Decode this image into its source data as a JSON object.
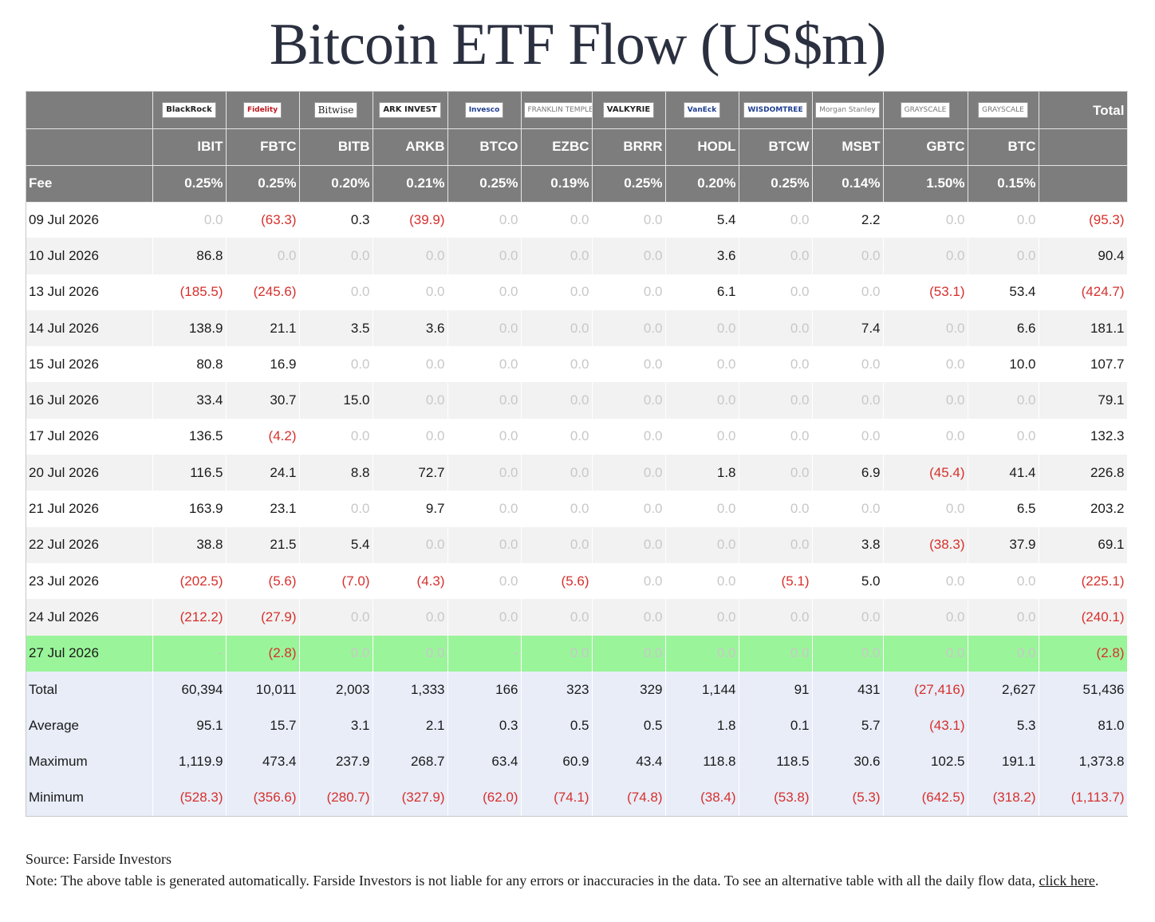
{
  "title": "Bitcoin ETF Flow (US$m)",
  "chart_data": {
    "type": "table",
    "title": "Bitcoin ETF Flow (US$m)",
    "logos": [
      {
        "text": "BlackRock",
        "style": "bold"
      },
      {
        "text": "Fidelity",
        "style": "red"
      },
      {
        "text": "Bitwise",
        "style": "serif"
      },
      {
        "text": "ARK INVEST",
        "style": "bold"
      },
      {
        "text": "Invesco",
        "style": "blue"
      },
      {
        "text": "FRANKLIN TEMPLETON",
        "style": "grey"
      },
      {
        "text": "VALKYRIE",
        "style": "bold"
      },
      {
        "text": "VanEck",
        "style": "blue"
      },
      {
        "text": "WISDOMTREE",
        "style": "blue"
      },
      {
        "text": "Morgan Stanley",
        "style": "grey"
      },
      {
        "text": "GRAYSCALE",
        "style": "grey"
      },
      {
        "text": "GRAYSCALE",
        "style": "grey"
      }
    ],
    "total_label": "Total",
    "fee_label": "Fee",
    "tickers": [
      "IBIT",
      "FBTC",
      "BITB",
      "ARKB",
      "BTCO",
      "EZBC",
      "BRRR",
      "HODL",
      "BTCW",
      "MSBT",
      "GBTC",
      "BTC"
    ],
    "fees": [
      "0.25%",
      "0.25%",
      "0.20%",
      "0.21%",
      "0.25%",
      "0.19%",
      "0.25%",
      "0.20%",
      "0.25%",
      "0.14%",
      "1.50%",
      "0.15%"
    ],
    "rows": [
      {
        "date": "09 Jul 2026",
        "values": [
          "0.0",
          "(63.3)",
          "0.3",
          "(39.9)",
          "0.0",
          "0.0",
          "0.0",
          "5.4",
          "0.0",
          "2.2",
          "0.0",
          "0.0"
        ],
        "total": "(95.3)"
      },
      {
        "date": "10 Jul 2026",
        "values": [
          "86.8",
          "0.0",
          "0.0",
          "0.0",
          "0.0",
          "0.0",
          "0.0",
          "3.6",
          "0.0",
          "0.0",
          "0.0",
          "0.0"
        ],
        "total": "90.4"
      },
      {
        "date": "13 Jul 2026",
        "values": [
          "(185.5)",
          "(245.6)",
          "0.0",
          "0.0",
          "0.0",
          "0.0",
          "0.0",
          "6.1",
          "0.0",
          "0.0",
          "(53.1)",
          "53.4"
        ],
        "total": "(424.7)"
      },
      {
        "date": "14 Jul 2026",
        "values": [
          "138.9",
          "21.1",
          "3.5",
          "3.6",
          "0.0",
          "0.0",
          "0.0",
          "0.0",
          "0.0",
          "7.4",
          "0.0",
          "6.6"
        ],
        "total": "181.1"
      },
      {
        "date": "15 Jul 2026",
        "values": [
          "80.8",
          "16.9",
          "0.0",
          "0.0",
          "0.0",
          "0.0",
          "0.0",
          "0.0",
          "0.0",
          "0.0",
          "0.0",
          "10.0"
        ],
        "total": "107.7"
      },
      {
        "date": "16 Jul 2026",
        "values": [
          "33.4",
          "30.7",
          "15.0",
          "0.0",
          "0.0",
          "0.0",
          "0.0",
          "0.0",
          "0.0",
          "0.0",
          "0.0",
          "0.0"
        ],
        "total": "79.1"
      },
      {
        "date": "17 Jul 2026",
        "values": [
          "136.5",
          "(4.2)",
          "0.0",
          "0.0",
          "0.0",
          "0.0",
          "0.0",
          "0.0",
          "0.0",
          "0.0",
          "0.0",
          "0.0"
        ],
        "total": "132.3"
      },
      {
        "date": "20 Jul 2026",
        "values": [
          "116.5",
          "24.1",
          "8.8",
          "72.7",
          "0.0",
          "0.0",
          "0.0",
          "1.8",
          "0.0",
          "6.9",
          "(45.4)",
          "41.4"
        ],
        "total": "226.8"
      },
      {
        "date": "21 Jul 2026",
        "values": [
          "163.9",
          "23.1",
          "0.0",
          "9.7",
          "0.0",
          "0.0",
          "0.0",
          "0.0",
          "0.0",
          "0.0",
          "0.0",
          "6.5"
        ],
        "total": "203.2"
      },
      {
        "date": "22 Jul 2026",
        "values": [
          "38.8",
          "21.5",
          "5.4",
          "0.0",
          "0.0",
          "0.0",
          "0.0",
          "0.0",
          "0.0",
          "3.8",
          "(38.3)",
          "37.9"
        ],
        "total": "69.1"
      },
      {
        "date": "23 Jul 2026",
        "values": [
          "(202.5)",
          "(5.6)",
          "(7.0)",
          "(4.3)",
          "0.0",
          "(5.6)",
          "0.0",
          "0.0",
          "(5.1)",
          "5.0",
          "0.0",
          "0.0"
        ],
        "total": "(225.1)"
      },
      {
        "date": "24 Jul 2026",
        "values": [
          "(212.2)",
          "(27.9)",
          "0.0",
          "0.0",
          "0.0",
          "0.0",
          "0.0",
          "0.0",
          "0.0",
          "0.0",
          "0.0",
          "0.0"
        ],
        "total": "(240.1)"
      },
      {
        "date": "27 Jul 2026",
        "values": [
          "-",
          "(2.8)",
          "0.0",
          "0.0",
          "-",
          "0.0",
          "0.0",
          "0.0",
          "0.0",
          "0.0",
          "0.0",
          "0.0"
        ],
        "total": "(2.8)",
        "highlight": true
      }
    ],
    "summary": [
      {
        "label": "Total",
        "values": [
          "60,394",
          "10,011",
          "2,003",
          "1,333",
          "166",
          "323",
          "329",
          "1,144",
          "91",
          "431",
          "(27,416)",
          "2,627"
        ],
        "total": "51,436"
      },
      {
        "label": "Average",
        "values": [
          "95.1",
          "15.7",
          "3.1",
          "2.1",
          "0.3",
          "0.5",
          "0.5",
          "1.8",
          "0.1",
          "5.7",
          "(43.1)",
          "5.3"
        ],
        "total": "81.0"
      },
      {
        "label": "Maximum",
        "values": [
          "1,119.9",
          "473.4",
          "237.9",
          "268.7",
          "63.4",
          "60.9",
          "43.4",
          "118.8",
          "118.5",
          "30.6",
          "102.5",
          "191.1"
        ],
        "total": "1,373.8"
      },
      {
        "label": "Minimum",
        "values": [
          "(528.3)",
          "(356.6)",
          "(280.7)",
          "(327.9)",
          "(62.0)",
          "(74.1)",
          "(74.8)",
          "(38.4)",
          "(53.8)",
          "(5.3)",
          "(642.5)",
          "(318.2)"
        ],
        "total": "(1,113.7)"
      }
    ],
    "colors": {
      "header_bg": "#7d7d7d",
      "negative": "#d6302c",
      "zero": "#c8c8c8",
      "highlight_row": "#9af59a",
      "summary_bg": "#e8edf8"
    }
  },
  "footer": {
    "source": "Source: Farside Investors",
    "note": "Note: The above table is generated automatically. Farside Investors is not liable for any errors or inaccuracies in the data. To see an alternative table with all the daily flow data, ",
    "link_text": "click here",
    "end": "."
  }
}
